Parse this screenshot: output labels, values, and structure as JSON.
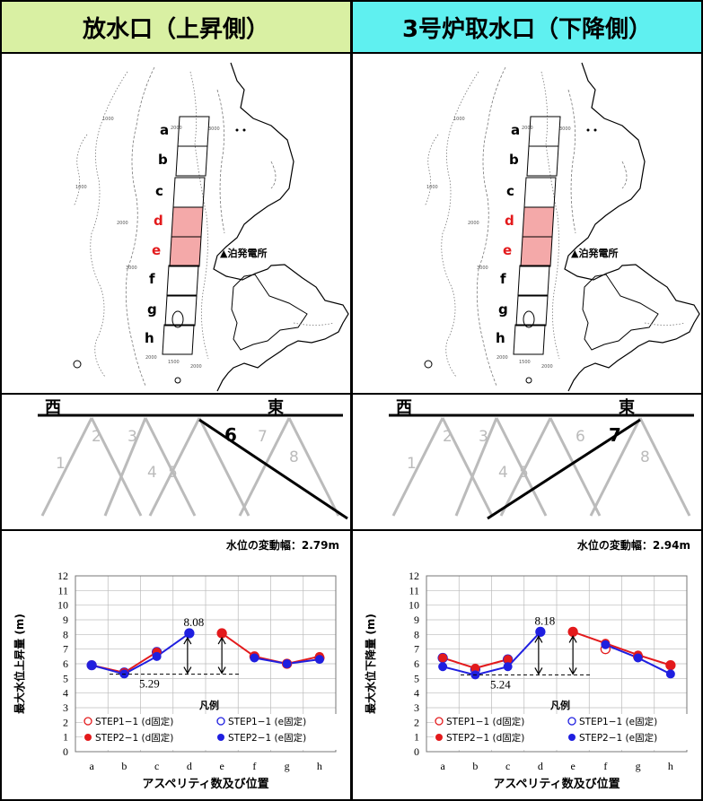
{
  "panels": [
    {
      "title": "放水口（上昇側）",
      "map": {
        "segments": [
          "a",
          "b",
          "c",
          "d",
          "e",
          "f",
          "g",
          "h"
        ],
        "highlighted": [
          "d",
          "e"
        ],
        "station": "▲泊発電所",
        "contour_labels": [
          "1000",
          "2000",
          "3000",
          "1000",
          "2000",
          "3000",
          "2000",
          "1500",
          "2000"
        ]
      },
      "fault": {
        "west": "西",
        "east": "東",
        "numbers": [
          "1",
          "2",
          "3",
          "4",
          "5",
          "6",
          "7",
          "8"
        ],
        "highlight": "6"
      },
      "amplitude_text": "水位の変動幅：2.79m",
      "chart_data": {
        "type": "line",
        "categories": [
          "a",
          "b",
          "c",
          "d",
          "e",
          "f",
          "g",
          "h"
        ],
        "ylabel": "最大水位上昇量 (m)",
        "xlabel": "アスペリティ数及び位置",
        "ylim": [
          0,
          12
        ],
        "yticks": [
          "0",
          "1",
          "2",
          "3",
          "4",
          "5",
          "6",
          "7",
          "8",
          "9",
          "10",
          "11",
          "12"
        ],
        "grid": true,
        "legend_title": "凡例",
        "series": [
          {
            "name": "STEP1−1 (d固定)",
            "color": "#e31a1c",
            "marker": "open",
            "values": [
              null,
              null,
              null,
              null,
              8.08,
              6.5,
              6.0,
              6.4
            ]
          },
          {
            "name": "STEP1−1 (e固定)",
            "color": "#1f1fe0",
            "marker": "open",
            "values": [
              5.9,
              5.4,
              6.8,
              8.08,
              null,
              null,
              null,
              null
            ]
          },
          {
            "name": "STEP2−1 (d固定)",
            "color": "#e31a1c",
            "marker": "filled",
            "values": [
              5.9,
              5.4,
              6.8,
              null,
              8.08,
              6.5,
              6.0,
              6.5
            ]
          },
          {
            "name": "STEP2−1 (e固定)",
            "color": "#1f1fe0",
            "marker": "filled",
            "values": [
              5.9,
              5.3,
              6.5,
              8.08,
              null,
              6.4,
              6.0,
              6.3
            ]
          }
        ],
        "annotations": {
          "max": "8.08",
          "min": "5.29",
          "max_value": 8.08,
          "min_value": 5.29
        }
      }
    },
    {
      "title": "3号炉取水口（下降側）",
      "map": {
        "segments": [
          "a",
          "b",
          "c",
          "d",
          "e",
          "f",
          "g",
          "h"
        ],
        "highlighted": [
          "d",
          "e"
        ],
        "station": "▲泊発電所",
        "contour_labels": [
          "1000",
          "2000",
          "3000",
          "1000",
          "2000",
          "3000",
          "2000",
          "1500",
          "2000"
        ]
      },
      "fault": {
        "west": "西",
        "east": "東",
        "numbers": [
          "1",
          "2",
          "3",
          "4",
          "5",
          "6",
          "7",
          "8"
        ],
        "highlight": "7"
      },
      "amplitude_text": "水位の変動幅：2.94m",
      "chart_data": {
        "type": "line",
        "categories": [
          "a",
          "b",
          "c",
          "d",
          "e",
          "f",
          "g",
          "h"
        ],
        "ylabel": "最大水位下降量 (m)",
        "xlabel": "アスペリティ数及び位置",
        "ylim": [
          0,
          12
        ],
        "yticks": [
          "0",
          "1",
          "2",
          "3",
          "4",
          "5",
          "6",
          "7",
          "8",
          "9",
          "10",
          "11",
          "12"
        ],
        "grid": true,
        "legend_title": "凡例",
        "series": [
          {
            "name": "STEP1−1 (d固定)",
            "color": "#e31a1c",
            "marker": "open",
            "values": [
              null,
              null,
              null,
              null,
              8.18,
              7.0,
              6.5,
              5.9
            ]
          },
          {
            "name": "STEP1−1 (e固定)",
            "color": "#1f1fe0",
            "marker": "open",
            "values": [
              6.4,
              5.6,
              6.3,
              8.18,
              null,
              null,
              null,
              null
            ]
          },
          {
            "name": "STEP2−1 (d固定)",
            "color": "#e31a1c",
            "marker": "filled",
            "values": [
              6.4,
              5.7,
              6.3,
              null,
              8.18,
              7.4,
              6.6,
              5.9
            ]
          },
          {
            "name": "STEP2−1 (e固定)",
            "color": "#1f1fe0",
            "marker": "filled",
            "values": [
              5.8,
              5.24,
              5.8,
              8.18,
              null,
              7.3,
              6.4,
              5.3
            ]
          }
        ],
        "annotations": {
          "max": "8.18",
          "min": "5.24",
          "max_value": 8.18,
          "min_value": 5.24
        }
      }
    }
  ]
}
